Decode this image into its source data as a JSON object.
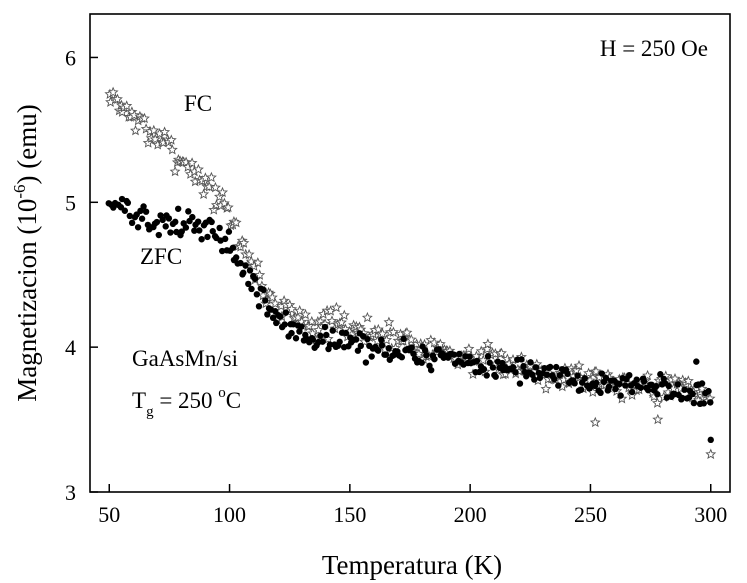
{
  "chart_data": {
    "type": "scatter",
    "title": "",
    "xlabel": "Temperatura (K)",
    "ylabel": {
      "main": "Magnetizacion (10",
      "exponent": "-6",
      "tail": ") (emu)"
    },
    "xlim": [
      42,
      308
    ],
    "ylim": [
      3.0,
      6.3
    ],
    "xticks": [
      50,
      100,
      150,
      200,
      250,
      300
    ],
    "yticks": [
      3,
      4,
      5,
      6
    ],
    "grid": false,
    "annotations": {
      "field": "H = 250 Oe",
      "fc_label": "FC",
      "zfc_label": "ZFC",
      "sample": "GaAsMn/si",
      "growth_temp": {
        "symbol": "T",
        "subscript": "g",
        "text": " = 250 ",
        "degree": "o",
        "unit": "C"
      }
    },
    "series": [
      {
        "name": "FC",
        "marker": "open-star",
        "color": "#555555",
        "trend": {
          "x": [
            50,
            55,
            60,
            70,
            80,
            90,
            95,
            100,
            105,
            110,
            115,
            120,
            130,
            140,
            150,
            160,
            175,
            190,
            200,
            220,
            240,
            260,
            280,
            290,
            300
          ],
          "y": [
            5.72,
            5.68,
            5.58,
            5.45,
            5.3,
            5.14,
            5.02,
            4.9,
            4.72,
            4.55,
            4.38,
            4.27,
            4.2,
            4.15,
            4.13,
            4.1,
            4.04,
            3.97,
            3.92,
            3.87,
            3.81,
            3.76,
            3.73,
            3.71,
            3.68
          ]
        },
        "spread": 0.07,
        "step_k": 0.8,
        "seed": 7
      },
      {
        "name": "ZFC",
        "marker": "filled-circle",
        "color": "#000000",
        "trend": {
          "x": [
            50,
            55,
            60,
            65,
            70,
            75,
            80,
            90,
            95,
            100,
            105,
            110,
            115,
            120,
            125,
            130,
            140,
            150,
            160,
            175,
            190,
            200,
            220,
            240,
            260,
            280,
            290,
            300
          ],
          "y": [
            5.0,
            4.98,
            4.9,
            4.86,
            4.84,
            4.85,
            4.85,
            4.82,
            4.78,
            4.7,
            4.56,
            4.42,
            4.3,
            4.2,
            4.12,
            4.08,
            4.05,
            4.03,
            4.0,
            3.96,
            3.91,
            3.88,
            3.84,
            3.79,
            3.74,
            3.72,
            3.71,
            3.68
          ]
        },
        "spread": 0.06,
        "step_k": 0.8,
        "seed": 13
      }
    ],
    "outliers": [
      {
        "series": "ZFC",
        "x": 300,
        "y": 3.36
      },
      {
        "series": "FC",
        "x": 300,
        "y": 3.26
      },
      {
        "series": "ZFC",
        "x": 294,
        "y": 3.9
      },
      {
        "series": "FC",
        "x": 278,
        "y": 3.5
      },
      {
        "series": "FC",
        "x": 252,
        "y": 3.48
      }
    ]
  }
}
